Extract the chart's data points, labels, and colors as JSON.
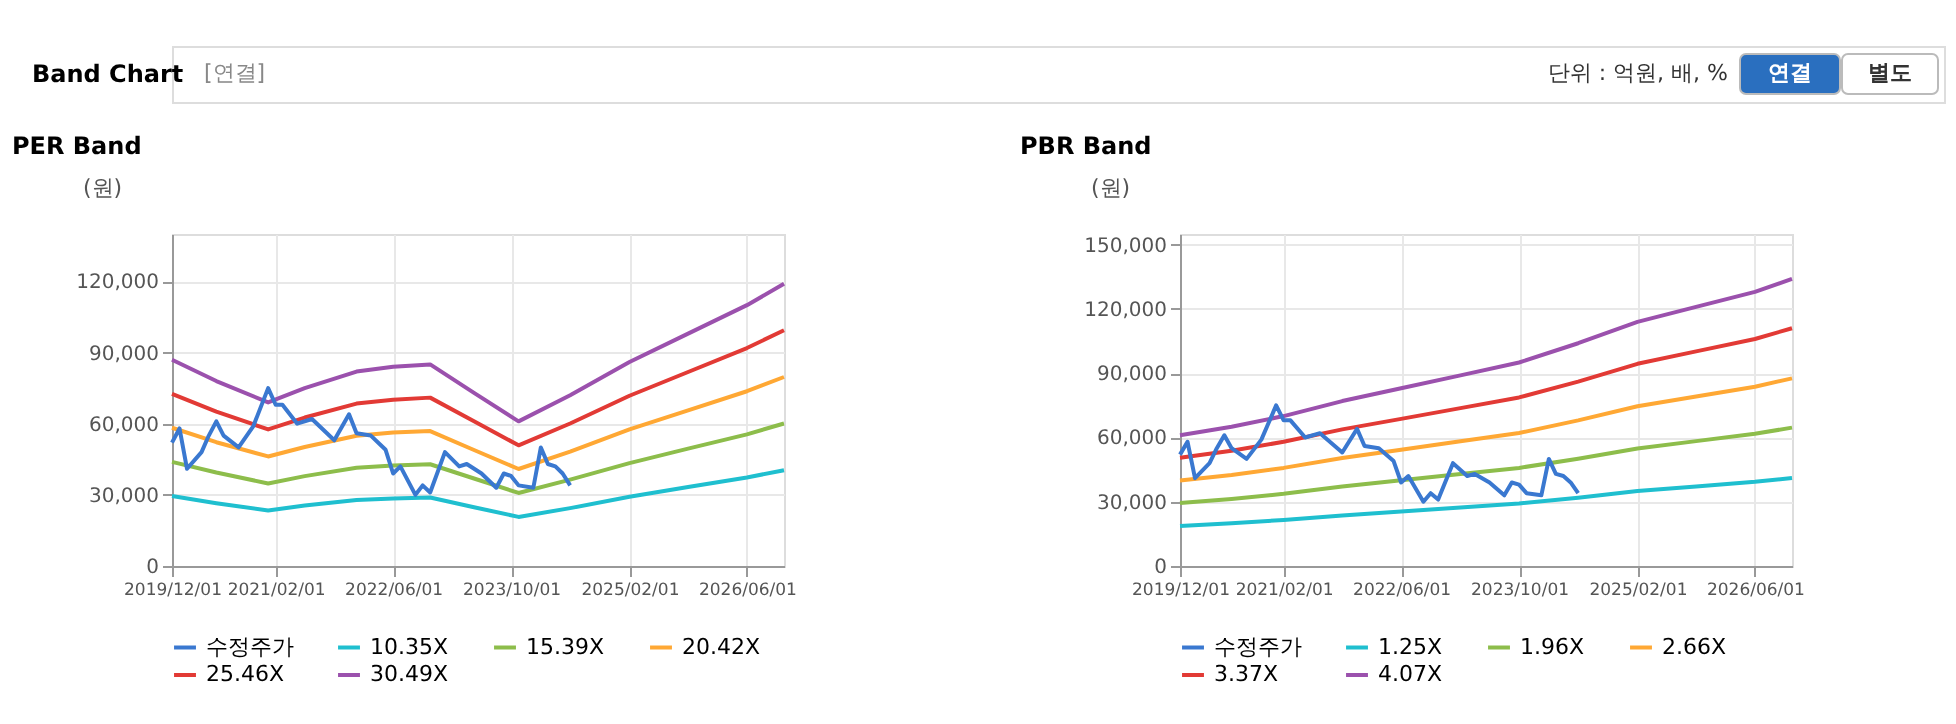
{
  "chart_data": [
    {
      "type": "line",
      "title": "PER Band",
      "ylabel": "(원)",
      "annotations": [
        "Band Chart",
        "[연결]",
        "단위 : 억원, 배, %",
        "연결",
        "별도"
      ],
      "grid": true,
      "legend": "bottom",
      "line_style": "solid",
      "marker": "none",
      "xlim": [
        "2019-12-01",
        "2026-11-01"
      ],
      "xticks": [
        {
          "value": "2019-12-01",
          "label": "2019/12/01"
        },
        {
          "value": "2021-02-01",
          "label": "2021/02/01"
        },
        {
          "value": "2022-06-01",
          "label": "2022/06/01"
        },
        {
          "value": "2023-10-01",
          "label": "2023/10/01"
        },
        {
          "value": "2025-02-01",
          "label": "2025/02/01"
        },
        {
          "value": "2026-06-01",
          "label": "2026/06/01"
        }
      ],
      "ylim": [
        0,
        140000
      ],
      "yticks": [
        0,
        {
          "value": 30000,
          "label": "30,000"
        },
        {
          "value": 60000,
          "label": "60,000"
        },
        {
          "value": 90000,
          "label": "90,000"
        },
        {
          "value": 120000,
          "label": "120,000"
        }
      ],
      "x": [
        "2019-12",
        "2020-06",
        "2021-01",
        "2021-06",
        "2022-01",
        "2022-06",
        "2022-11",
        "2023-05",
        "2023-11",
        "2024-06",
        "2025-02",
        "2025-10",
        "2026-06",
        "2026-11"
      ],
      "series": [
        {
          "name": "수정주가",
          "color": "#3a78d0",
          "x": [
            "2019-12",
            "2020-01",
            "2020-02",
            "2020-04",
            "2020-05",
            "2020-06",
            "2020-07",
            "2020-09",
            "2020-11",
            "2021-01",
            "2021-02",
            "2021-03",
            "2021-05",
            "2021-07",
            "2021-10",
            "2021-12",
            "2022-01",
            "2022-03",
            "2022-05",
            "2022-06",
            "2022-07",
            "2022-09",
            "2022-10",
            "2022-11",
            "2023-01",
            "2023-03",
            "2023-04",
            "2023-06",
            "2023-08",
            "2023-09",
            "2023-10",
            "2023-11",
            "2024-01",
            "2024-02",
            "2024-03",
            "2024-04",
            "2024-05",
            "2024-06"
          ],
          "values": [
            52000,
            58000,
            41000,
            48000,
            55000,
            61000,
            55000,
            50000,
            59000,
            75000,
            68000,
            68000,
            60000,
            62000,
            53000,
            64000,
            56000,
            55000,
            49000,
            39000,
            42000,
            30000,
            34000,
            31000,
            48000,
            42000,
            43000,
            39000,
            33000,
            39000,
            38000,
            34000,
            33000,
            50000,
            43000,
            42000,
            39000,
            34000
          ]
        },
        {
          "name": "10.35X",
          "color": "#1fbfcf",
          "values": [
            29500,
            26500,
            23400,
            25500,
            27800,
            28500,
            28900,
            24800,
            20700,
            24400,
            29200,
            33300,
            37300,
            40400
          ]
        },
        {
          "name": "15.39X",
          "color": "#8dbd4b",
          "values": [
            43900,
            39400,
            34800,
            37900,
            41400,
            42400,
            42900,
            36900,
            30800,
            36400,
            43400,
            49500,
            55500,
            60100
          ]
        },
        {
          "name": "20.42X",
          "color": "#ffa834",
          "values": [
            58300,
            52200,
            46200,
            50200,
            54900,
            56300,
            56900,
            48900,
            40900,
            48200,
            57600,
            65600,
            73700,
            79700
          ]
        },
        {
          "name": "25.46X",
          "color": "#e23a35",
          "values": [
            72600,
            65100,
            57600,
            62600,
            68500,
            70100,
            71000,
            61000,
            50900,
            60100,
            71800,
            81800,
            91900,
            99400
          ]
        },
        {
          "name": "30.49X",
          "color": "#9b51ad",
          "values": [
            87000,
            78000,
            69000,
            75000,
            82000,
            84000,
            85000,
            73000,
            61000,
            72000,
            86000,
            98000,
            110000,
            119000
          ]
        }
      ]
    },
    {
      "type": "line",
      "title": "PBR Band",
      "ylabel": "(원)",
      "grid": true,
      "legend": "bottom",
      "line_style": "solid",
      "marker": "none",
      "xlim": [
        "2019-12-01",
        "2026-11-01"
      ],
      "xticks": [
        {
          "value": "2019-12-01",
          "label": "2019/12/01"
        },
        {
          "value": "2021-02-01",
          "label": "2021/02/01"
        },
        {
          "value": "2022-06-01",
          "label": "2022/06/01"
        },
        {
          "value": "2023-10-01",
          "label": "2023/10/01"
        },
        {
          "value": "2025-02-01",
          "label": "2025/02/01"
        },
        {
          "value": "2026-06-01",
          "label": "2026/06/01"
        }
      ],
      "ylim": [
        0,
        155000
      ],
      "yticks": [
        0,
        {
          "value": 30000,
          "label": "30,000"
        },
        {
          "value": 60000,
          "label": "60,000"
        },
        {
          "value": 90000,
          "label": "90,000"
        },
        {
          "value": 120000,
          "label": "120,000"
        },
        {
          "value": 150000,
          "label": "150,000"
        }
      ],
      "x": [
        "2019-12",
        "2020-07",
        "2021-02",
        "2021-10",
        "2022-06",
        "2023-02",
        "2023-10",
        "2024-06",
        "2025-02",
        "2025-10",
        "2026-06",
        "2026-11"
      ],
      "series": [
        {
          "name": "수정주가",
          "color": "#3a78d0",
          "x": [
            "2019-12",
            "2020-01",
            "2020-02",
            "2020-04",
            "2020-05",
            "2020-06",
            "2020-07",
            "2020-09",
            "2020-11",
            "2021-01",
            "2021-02",
            "2021-03",
            "2021-05",
            "2021-07",
            "2021-10",
            "2021-12",
            "2022-01",
            "2022-03",
            "2022-05",
            "2022-06",
            "2022-07",
            "2022-09",
            "2022-10",
            "2022-11",
            "2023-01",
            "2023-03",
            "2023-04",
            "2023-06",
            "2023-08",
            "2023-09",
            "2023-10",
            "2023-11",
            "2024-01",
            "2024-02",
            "2024-03",
            "2024-04",
            "2024-05",
            "2024-06"
          ],
          "values": [
            52000,
            58000,
            41000,
            48000,
            55000,
            61000,
            55000,
            50000,
            59000,
            75000,
            68000,
            68000,
            60000,
            62000,
            53000,
            64000,
            56000,
            55000,
            49000,
            39000,
            42000,
            30000,
            34000,
            31000,
            48000,
            42000,
            43000,
            39000,
            33000,
            39000,
            38000,
            34000,
            33000,
            50000,
            43000,
            42000,
            39000,
            34000
          ]
        },
        {
          "name": "1.25X",
          "color": "#1fbfcf",
          "values": [
            18700,
            20000,
            21500,
            23600,
            25500,
            27300,
            29200,
            31900,
            35000,
            37100,
            39300,
            41100
          ]
        },
        {
          "name": "1.96X",
          "color": "#8dbd4b",
          "values": [
            29400,
            31300,
            33700,
            37100,
            40000,
            42900,
            45800,
            50100,
            54900,
            58300,
            61700,
            64600
          ]
        },
        {
          "name": "2.66X",
          "color": "#ffa834",
          "values": [
            39900,
            42500,
            45800,
            50400,
            54300,
            58200,
            62100,
            68000,
            74600,
            79100,
            83700,
            87600
          ]
        },
        {
          "name": "3.37X",
          "color": "#e23a35",
          "values": [
            50500,
            53800,
            58000,
            63800,
            68700,
            73700,
            78700,
            86100,
            94400,
            100200,
            106000,
            111000
          ]
        },
        {
          "name": "4.07X",
          "color": "#9b51ad",
          "values": [
            61000,
            65000,
            70000,
            77000,
            83000,
            89000,
            95000,
            104000,
            114000,
            121000,
            128000,
            134000
          ]
        }
      ]
    }
  ]
}
